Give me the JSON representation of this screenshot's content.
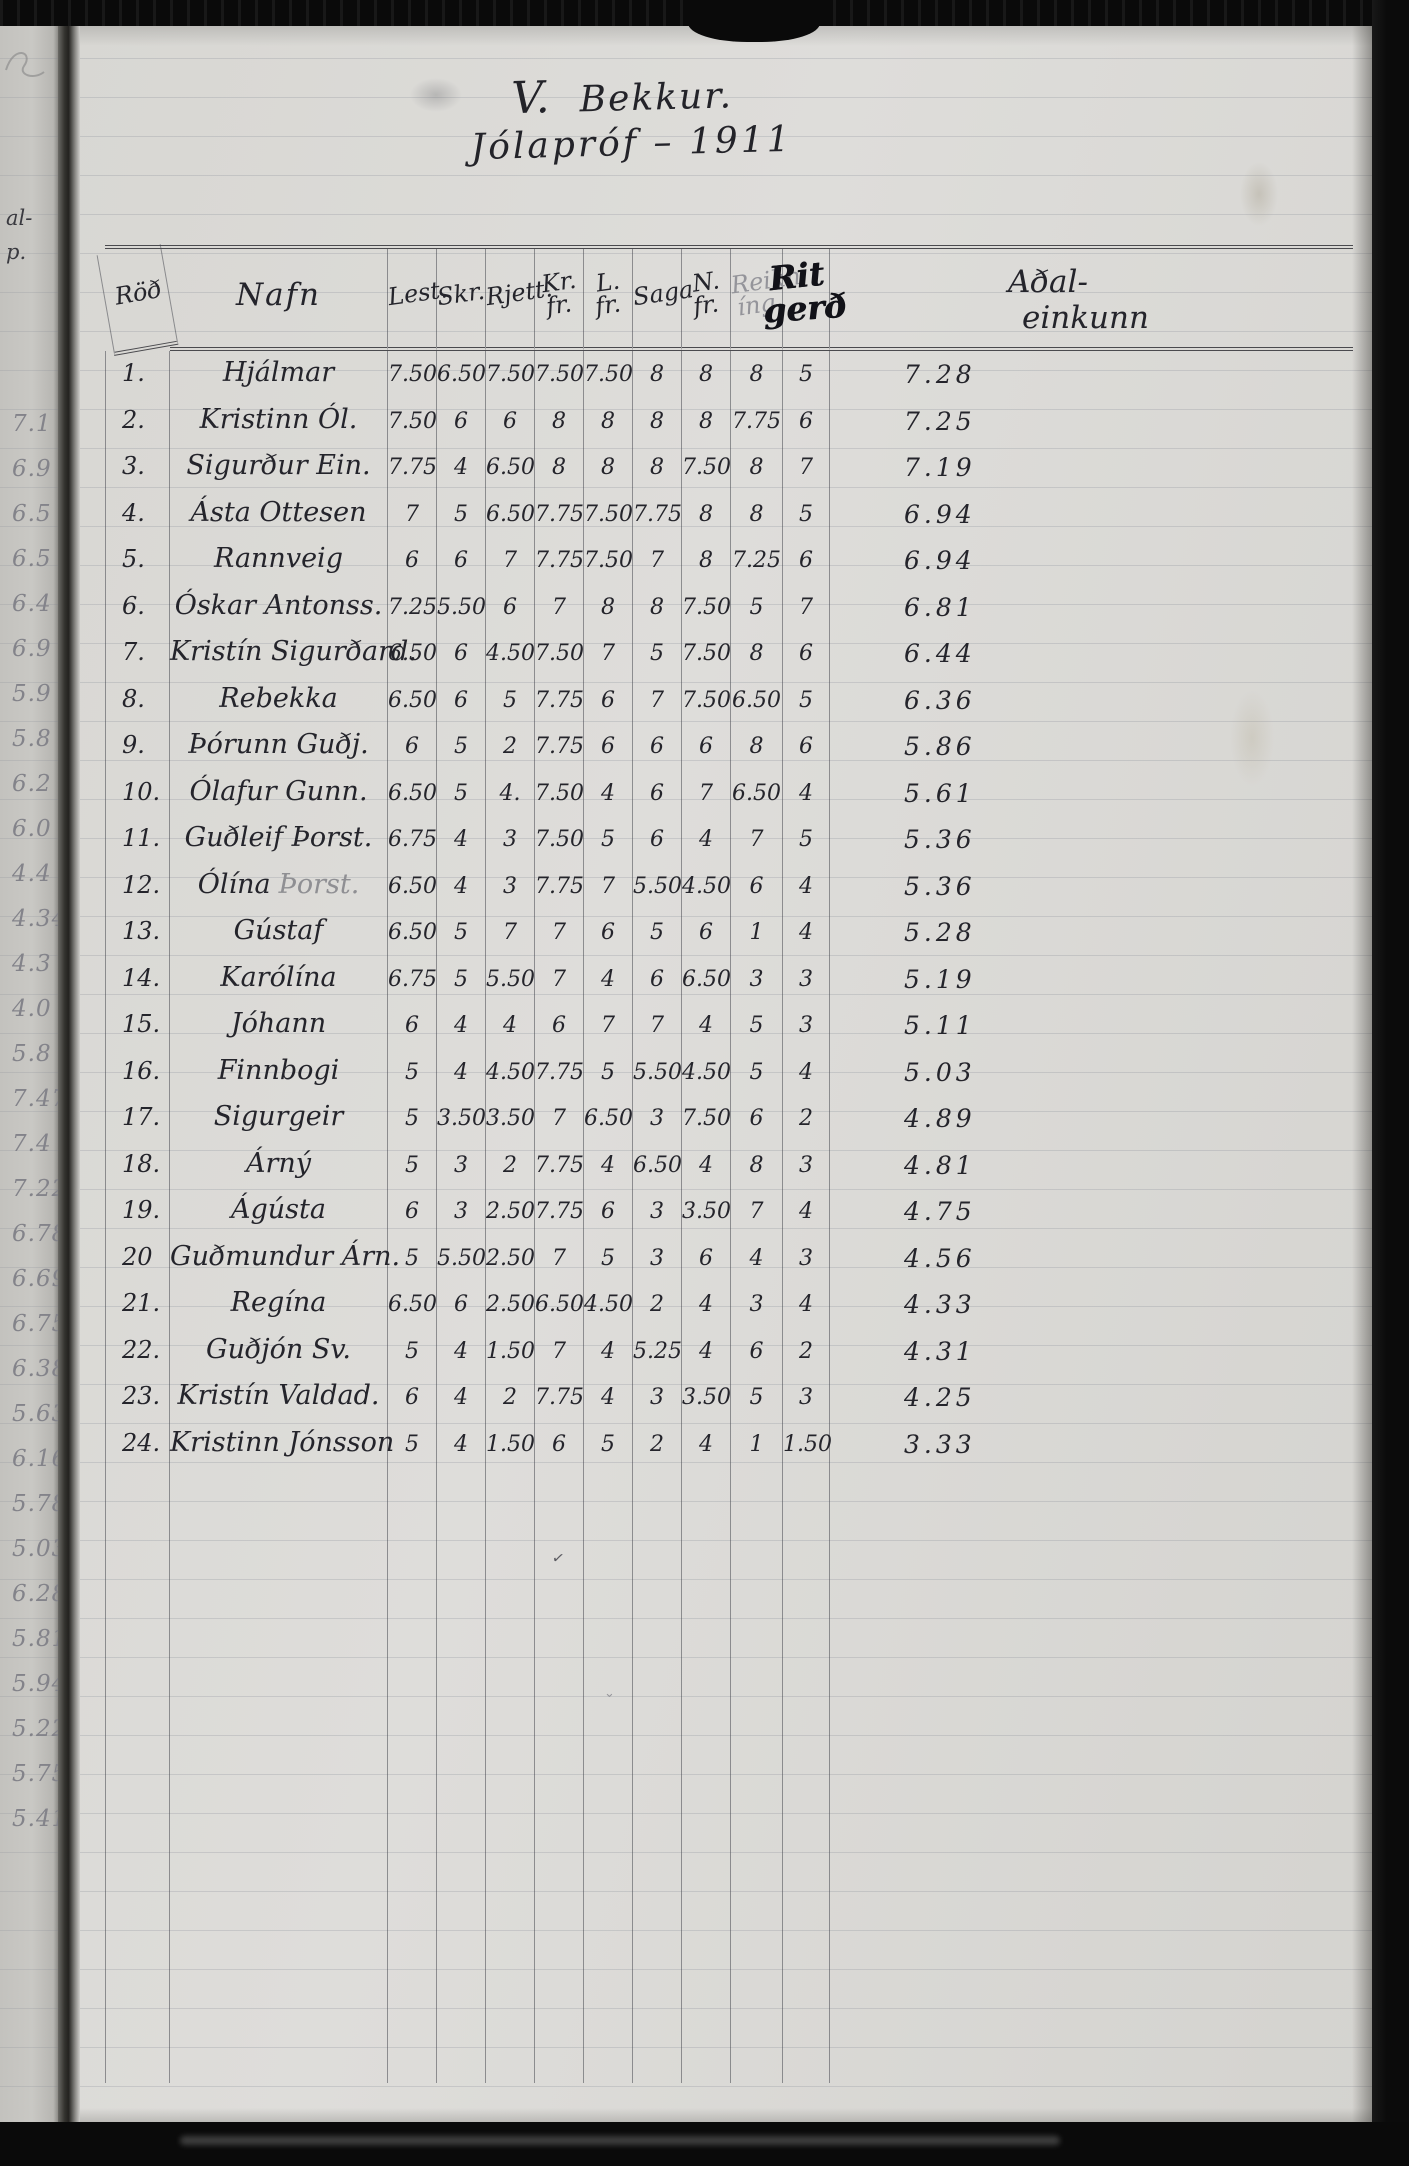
{
  "title": {
    "class_label": "V.",
    "class_word": "Bekkur.",
    "exam_line": "Jólapróf – 1911"
  },
  "margin": {
    "fragments": [
      "al-",
      "p."
    ],
    "values": [
      "7.1",
      "6.9",
      "6.5",
      "6.5",
      "6.4",
      "6.9",
      "5.9",
      "5.8",
      "6.2",
      "6.0",
      "4.4",
      "4.34",
      "4.3",
      "4.0",
      "5.8",
      "7.47",
      "7.4",
      "7.22",
      "6.78",
      "6.69",
      "6.75",
      "6.38",
      "5.63",
      "6.16",
      "5.78",
      "5.03",
      "6.28",
      "5.81",
      "5.94",
      "5.22",
      "5.75",
      "5.41"
    ]
  },
  "table": {
    "headers": {
      "rank": "Röð",
      "name": "Nafn",
      "subjects": [
        {
          "l1": "Lest.",
          "l2": ""
        },
        {
          "l1": "Skr.",
          "l2": ""
        },
        {
          "l1": "Rjett.",
          "l2": ""
        },
        {
          "l1": "Kr.",
          "l2": "fr."
        },
        {
          "l1": "L.",
          "l2": "fr."
        },
        {
          "l1": "Saga",
          "l2": ""
        },
        {
          "l1": "N.",
          "l2": "fr."
        },
        {
          "l1": "Reikn",
          "l2": "íng",
          "pencil": true
        },
        {
          "l1": "Rit",
          "l2": "gerð",
          "bold": true
        }
      ],
      "total": {
        "l1": "Aðal-",
        "l2": "einkunn"
      }
    },
    "rows": [
      {
        "no": "1.",
        "name": "Hjálmar",
        "g": [
          "7.50",
          "6.50",
          "7.50",
          "7.50",
          "7.50",
          "8",
          "8",
          "8",
          "5"
        ],
        "total": "7.28"
      },
      {
        "no": "2.",
        "name": "Kristinn Ól.",
        "g": [
          "7.50",
          "6",
          "6",
          "8",
          "8",
          "8",
          "8",
          "7.75",
          "6"
        ],
        "total": "7.25"
      },
      {
        "no": "3.",
        "name": "Sigurður Ein.",
        "g": [
          "7.75",
          "4",
          "6.50",
          "8",
          "8",
          "8",
          "7.50",
          "8",
          "7"
        ],
        "total": "7.19"
      },
      {
        "no": "4.",
        "name": "Ásta Ottesen",
        "g": [
          "7",
          "5",
          "6.50",
          "7.75",
          "7.50",
          "7.75",
          "8",
          "8",
          "5"
        ],
        "total": "6.94"
      },
      {
        "no": "5.",
        "name": "Rannveig",
        "g": [
          "6",
          "6",
          "7",
          "7.75",
          "7.50",
          "7",
          "8",
          "7.25",
          "6"
        ],
        "total": "6.94"
      },
      {
        "no": "6.",
        "name": "Óskar Antonss.",
        "g": [
          "7.25",
          "5.50",
          "6",
          "7",
          "8",
          "8",
          "7.50",
          "5",
          "7"
        ],
        "total": "6.81"
      },
      {
        "no": "7.",
        "name": "Kristín Sigurðard.",
        "g": [
          "6.50",
          "6",
          "4.50",
          "7.50",
          "7",
          "5",
          "7.50",
          "8",
          "6"
        ],
        "total": "6.44"
      },
      {
        "no": "8.",
        "name": "Rebekka",
        "g": [
          "6.50",
          "6",
          "5",
          "7.75",
          "6",
          "7",
          "7.50",
          "6.50",
          "5"
        ],
        "total": "6.36"
      },
      {
        "no": "9.",
        "name": "Þórunn Guðj.",
        "g": [
          "6",
          "5",
          "2",
          "7.75",
          "6",
          "6",
          "6",
          "8",
          "6"
        ],
        "total": "5.86"
      },
      {
        "no": "10.",
        "name": "Ólafur Gunn.",
        "g": [
          "6.50",
          "5",
          "4.",
          "7.50",
          "4",
          "6",
          "7",
          "6.50",
          "4"
        ],
        "total": "5.61"
      },
      {
        "no": "11.",
        "name": "Guðleif Þorst.",
        "g": [
          "6.75",
          "4",
          "3",
          "7.50",
          "5",
          "6",
          "4",
          "7",
          "5"
        ],
        "total": "5.36"
      },
      {
        "no": "12.",
        "name": "Ólína",
        "pencil": "Þorst.",
        "g": [
          "6.50",
          "4",
          "3",
          "7.75",
          "7",
          "5.50",
          "4.50",
          "6",
          "4"
        ],
        "total": "5.36"
      },
      {
        "no": "13.",
        "name": "Gústaf",
        "g": [
          "6.50",
          "5",
          "7",
          "7",
          "6",
          "5",
          "6",
          "1",
          "4"
        ],
        "total": "5.28"
      },
      {
        "no": "14.",
        "name": "Karólína",
        "g": [
          "6.75",
          "5",
          "5.50",
          "7",
          "4",
          "6",
          "6.50",
          "3",
          "3"
        ],
        "total": "5.19"
      },
      {
        "no": "15.",
        "name": "Jóhann",
        "g": [
          "6",
          "4",
          "4",
          "6",
          "7",
          "7",
          "4",
          "5",
          "3"
        ],
        "total": "5.11"
      },
      {
        "no": "16.",
        "name": "Finnbogi",
        "g": [
          "5",
          "4",
          "4.50",
          "7.75",
          "5",
          "5.50",
          "4.50",
          "5",
          "4"
        ],
        "total": "5.03"
      },
      {
        "no": "17.",
        "name": "Sigurgeir",
        "g": [
          "5",
          "3.50",
          "3.50",
          "7",
          "6.50",
          "3",
          "7.50",
          "6",
          "2"
        ],
        "total": "4.89"
      },
      {
        "no": "18.",
        "name": "Árný",
        "g": [
          "5",
          "3",
          "2",
          "7.75",
          "4",
          "6.50",
          "4",
          "8",
          "3"
        ],
        "total": "4.81"
      },
      {
        "no": "19.",
        "name": "Ágústa",
        "g": [
          "6",
          "3",
          "2.50",
          "7.75",
          "6",
          "3",
          "3.50",
          "7",
          "4"
        ],
        "total": "4.75"
      },
      {
        "no": "20",
        "name": "Guðmundur Árn.",
        "g": [
          "5",
          "5.50",
          "2.50",
          "7",
          "5",
          "3",
          "6",
          "4",
          "3"
        ],
        "total": "4.56"
      },
      {
        "no": "21.",
        "name": "Regína",
        "g": [
          "6.50",
          "6",
          "2.50",
          "6.50",
          "4.50",
          "2",
          "4",
          "3",
          "4"
        ],
        "total": "4.33"
      },
      {
        "no": "22.",
        "name": "Guðjón Sv.",
        "g": [
          "5",
          "4",
          "1.50",
          "7",
          "4",
          "5.25",
          "4",
          "6",
          "2"
        ],
        "total": "4.31"
      },
      {
        "no": "23.",
        "name": "Kristín Valdad.",
        "g": [
          "6",
          "4",
          "2",
          "7.75",
          "4",
          "3",
          "3.50",
          "5",
          "3"
        ],
        "total": "4.25"
      },
      {
        "no": "24.",
        "name": "Kristinn Jónsson",
        "g": [
          "5",
          "4",
          "1.50",
          "6",
          "5",
          "2",
          "4",
          "1",
          "1.50"
        ],
        "total": "3.33"
      }
    ]
  }
}
